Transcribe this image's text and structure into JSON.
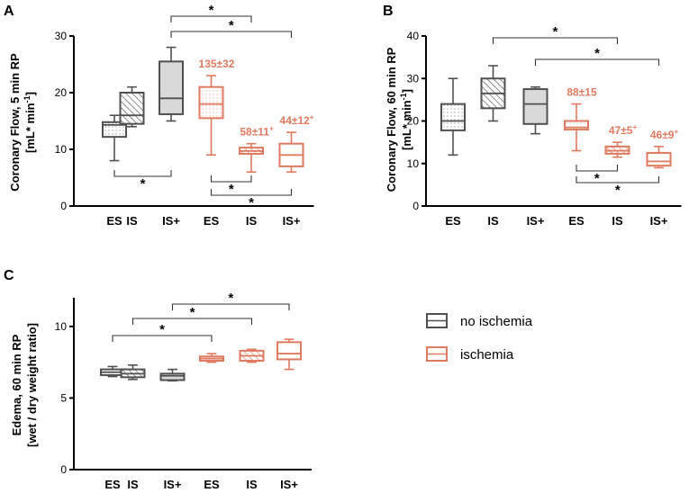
{
  "colors": {
    "no_ischemia": "#505050",
    "ischemia": "#E07A5F",
    "axis": "#000000"
  },
  "legend": {
    "entries": [
      {
        "label": "no ischemia",
        "color": "#505050"
      },
      {
        "label": "ischemia",
        "color": "#E07A5F"
      }
    ]
  },
  "chart_data": [
    {
      "panel": "A",
      "type": "box",
      "ylabel_line1": "Coronary Flow, 5 min RP",
      "ylabel_line2": "[mL* min",
      "ylabel_sup": "-1",
      "ylabel_end": "]",
      "ylim": [
        0,
        30
      ],
      "yticks": [
        0,
        10,
        20,
        30
      ],
      "categories": [
        "ES",
        "IS",
        "IS+",
        "ES",
        "IS",
        "IS+"
      ],
      "boxes": [
        {
          "group": "no ischemia",
          "category": "ES",
          "pattern": "dots",
          "min": 8,
          "q1": 12.2,
          "median": 14.3,
          "q3": 14.8,
          "max": 16
        },
        {
          "group": "no ischemia",
          "category": "IS",
          "pattern": "hatch",
          "min": 14,
          "q1": 14.5,
          "median": 16,
          "q3": 20,
          "max": 21
        },
        {
          "group": "no ischemia",
          "category": "IS+",
          "pattern": "solid",
          "min": 15,
          "q1": 16.2,
          "median": 19,
          "q3": 25.5,
          "max": 28
        },
        {
          "group": "ischemia",
          "category": "ES",
          "pattern": "dots",
          "min": 9,
          "q1": 15.5,
          "median": 18,
          "q3": 21,
          "max": 23,
          "annotation": "135±32"
        },
        {
          "group": "ischemia",
          "category": "IS",
          "pattern": "hatch",
          "min": 6,
          "q1": 9.2,
          "median": 9.7,
          "q3": 10.3,
          "max": 11,
          "annotation": "58±11",
          "annotation_sup": "+"
        },
        {
          "group": "ischemia",
          "category": "IS+",
          "pattern": "solid",
          "min": 6,
          "q1": 7,
          "median": 9,
          "q3": 11,
          "max": 13,
          "annotation": "44±12",
          "annotation_sup": "+"
        }
      ],
      "significance": [
        {
          "from": "IS+",
          "to": "IS",
          "label": "*",
          "note": "no ischemia IS+ vs ischemia IS"
        },
        {
          "from": "IS+",
          "to": "IS+",
          "label": "*",
          "note": "no ischemia IS+ vs ischemia IS+"
        },
        {
          "from": "ES",
          "to": "IS+",
          "label": "*",
          "note": "no ischemia ES vs IS+"
        },
        {
          "from": "ES",
          "to": "IS",
          "label": "*",
          "note": "ischemia ES vs IS"
        },
        {
          "from": "ES",
          "to": "IS+",
          "label": "*",
          "note": "ischemia ES vs IS+"
        }
      ]
    },
    {
      "panel": "B",
      "type": "box",
      "ylabel_line1": "Coronary Flow, 60 min RP",
      "ylabel_line2": "[mL* min",
      "ylabel_sup": "-1",
      "ylabel_end": "]",
      "ylim": [
        0,
        40
      ],
      "yticks": [
        0,
        10,
        20,
        30,
        40
      ],
      "categories": [
        "ES",
        "IS",
        "IS+",
        "ES",
        "IS",
        "IS+"
      ],
      "boxes": [
        {
          "group": "no ischemia",
          "category": "ES",
          "pattern": "dots",
          "min": 12,
          "q1": 17.8,
          "median": 20,
          "q3": 24,
          "max": 30
        },
        {
          "group": "no ischemia",
          "category": "IS",
          "pattern": "hatch",
          "min": 20,
          "q1": 23,
          "median": 26.5,
          "q3": 30,
          "max": 33
        },
        {
          "group": "no ischemia",
          "category": "IS+",
          "pattern": "solid",
          "min": 17,
          "q1": 19.3,
          "median": 24,
          "q3": 27.5,
          "max": 28
        },
        {
          "group": "ischemia",
          "category": "ES",
          "pattern": "dots",
          "min": 13,
          "q1": 18,
          "median": 18.5,
          "q3": 20,
          "max": 24,
          "annotation": "88±15"
        },
        {
          "group": "ischemia",
          "category": "IS",
          "pattern": "hatch",
          "min": 11.5,
          "q1": 12.3,
          "median": 13,
          "q3": 14,
          "max": 15,
          "annotation": "47±5",
          "annotation_sup": "+"
        },
        {
          "group": "ischemia",
          "category": "IS+",
          "pattern": "solid",
          "min": 9,
          "q1": 9.5,
          "median": 10.5,
          "q3": 12.5,
          "max": 14,
          "annotation": "46±9",
          "annotation_sup": "+"
        }
      ],
      "significance": [
        {
          "from": "IS",
          "to": "IS",
          "label": "*",
          "note": "no ischemia IS vs ischemia IS"
        },
        {
          "from": "IS+",
          "to": "IS+",
          "label": "*",
          "note": "no ischemia IS+ vs ischemia IS+"
        },
        {
          "from": "ES",
          "to": "IS",
          "label": "*",
          "note": "ischemia ES vs IS"
        },
        {
          "from": "ES",
          "to": "IS+",
          "label": "*",
          "note": "ischemia ES vs IS+"
        }
      ]
    },
    {
      "panel": "C",
      "type": "box",
      "ylabel_line1": "Edema, 60 min RP",
      "ylabel_line2": "[wet / dry weight ratio]",
      "ylabel_sup": "",
      "ylabel_end": "",
      "ylim": [
        0,
        12
      ],
      "yticks": [
        0,
        5,
        10
      ],
      "categories": [
        "ES",
        "IS",
        "IS+",
        "ES",
        "IS",
        "IS+"
      ],
      "boxes": [
        {
          "group": "no ischemia",
          "category": "ES",
          "pattern": "dots",
          "min": 6.5,
          "q1": 6.6,
          "median": 6.8,
          "q3": 7.0,
          "max": 7.2
        },
        {
          "group": "no ischemia",
          "category": "IS",
          "pattern": "hatch",
          "min": 6.3,
          "q1": 6.45,
          "median": 6.7,
          "q3": 7.0,
          "max": 7.3
        },
        {
          "group": "no ischemia",
          "category": "IS+",
          "pattern": "solid",
          "min": 6.2,
          "q1": 6.25,
          "median": 6.55,
          "q3": 6.7,
          "max": 7.0
        },
        {
          "group": "ischemia",
          "category": "ES",
          "pattern": "dots",
          "min": 7.5,
          "q1": 7.6,
          "median": 7.75,
          "q3": 7.9,
          "max": 8.1
        },
        {
          "group": "ischemia",
          "category": "IS",
          "pattern": "hatch",
          "min": 7.5,
          "q1": 7.6,
          "median": 7.95,
          "q3": 8.3,
          "max": 8.4
        },
        {
          "group": "ischemia",
          "category": "IS+",
          "pattern": "solid",
          "min": 7.0,
          "q1": 7.7,
          "median": 8.1,
          "q3": 8.9,
          "max": 9.1
        }
      ],
      "significance": [
        {
          "from": "ES",
          "to": "ES",
          "label": "*",
          "note": "no ischemia ES vs ischemia ES"
        },
        {
          "from": "IS",
          "to": "IS",
          "label": "*",
          "note": "no ischemia IS vs ischemia IS"
        },
        {
          "from": "IS+",
          "to": "IS+",
          "label": "*",
          "note": "no ischemia IS+ vs ischemia IS+"
        }
      ]
    }
  ]
}
